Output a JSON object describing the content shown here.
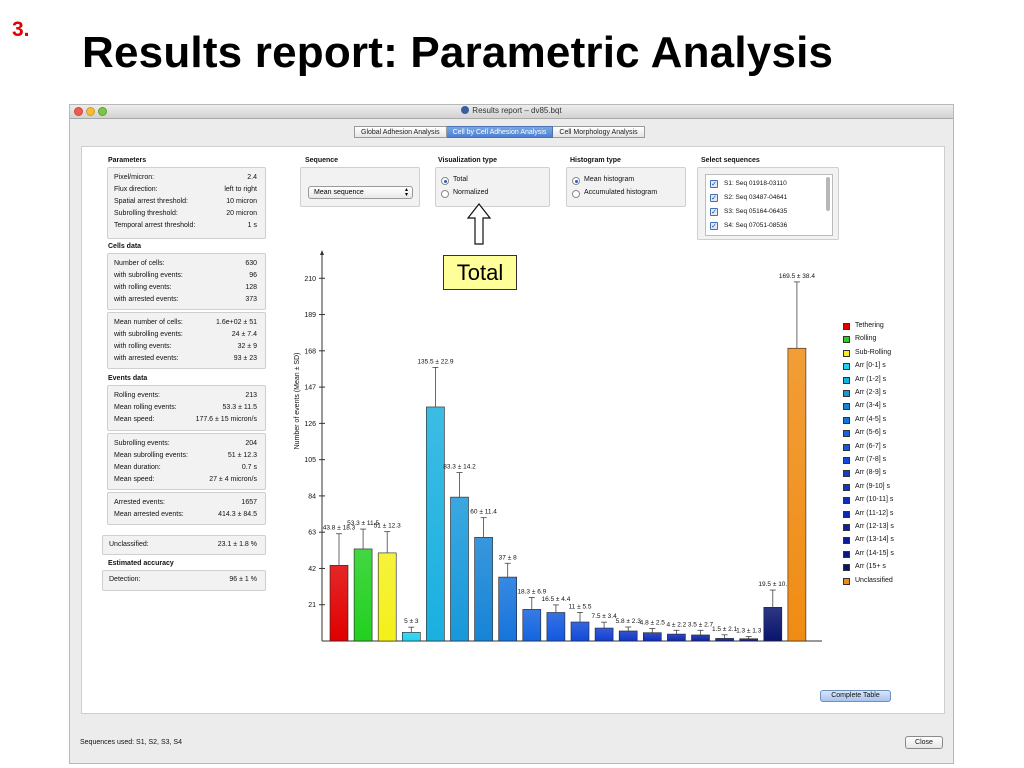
{
  "slide": {
    "number": "3.",
    "title": "Results report: Parametric Analysis"
  },
  "window": {
    "title": "Results report – dv85.bqt"
  },
  "tabs": [
    {
      "label": "Global Adhesion Analysis",
      "active": false
    },
    {
      "label": "Cell by Cell Adhesion Analysis",
      "active": true
    },
    {
      "label": "Cell Morphology Analysis",
      "active": false
    }
  ],
  "parameters": {
    "heading": "Parameters",
    "rows": [
      {
        "label": "Pixel/micron:",
        "value": "2.4"
      },
      {
        "label": "Flux direction:",
        "value": "left to right"
      },
      {
        "label": "Spatial arrest threshold:",
        "value": "10 micron"
      },
      {
        "label": "Subrolling threshold:",
        "value": "20 micron"
      },
      {
        "label": "Temporal arrest threshold:",
        "value": "1 s"
      }
    ]
  },
  "cells_data": {
    "heading": "Cells data",
    "group1": [
      {
        "label": "Number of cells:",
        "value": "630"
      },
      {
        "label": "with subrolling events:",
        "value": "96"
      },
      {
        "label": "with rolling events:",
        "value": "128"
      },
      {
        "label": "with arrested events:",
        "value": "373"
      }
    ],
    "group2": [
      {
        "label": "Mean number of cells:",
        "value": "1.6e+02 ± 51"
      },
      {
        "label": "with subrolling events:",
        "value": "24 ± 7.4"
      },
      {
        "label": "with rolling events:",
        "value": "32 ± 9"
      },
      {
        "label": "with arrested events:",
        "value": "93 ± 23"
      }
    ]
  },
  "events_data": {
    "heading": "Events data",
    "group1": [
      {
        "label": "Rolling events:",
        "value": "213"
      },
      {
        "label": "Mean rolling events:",
        "value": "53.3 ± 11.5"
      },
      {
        "label": "Mean speed:",
        "value": "177.6 ± 15 micron/s"
      }
    ],
    "group2": [
      {
        "label": "Subrolling events:",
        "value": "204"
      },
      {
        "label": "Mean subrolling events:",
        "value": "51 ± 12.3"
      },
      {
        "label": "Mean duration:",
        "value": "0.7 s"
      },
      {
        "label": "Mean speed:",
        "value": "27 ± 4 micron/s"
      }
    ],
    "group3": [
      {
        "label": "Arrested events:",
        "value": "1657"
      },
      {
        "label": "Mean arrested events:",
        "value": "414.3 ± 84.5"
      }
    ]
  },
  "unclassified": {
    "label": "Unclassified:",
    "value": "23.1 ± 1.8 %"
  },
  "accuracy": {
    "heading": "Estimated accuracy",
    "label": "Detection:",
    "value": "96 ± 1 %"
  },
  "sequence": {
    "heading": "Sequence",
    "selected": "Mean sequence"
  },
  "visualization": {
    "heading": "Visualization type",
    "options": [
      {
        "label": "Total",
        "checked": true
      },
      {
        "label": "Normalized",
        "checked": false
      }
    ]
  },
  "histogram": {
    "heading": "Histogram type",
    "options": [
      {
        "label": "Mean histogram",
        "checked": true
      },
      {
        "label": "Accumulated histogram",
        "checked": false
      }
    ]
  },
  "select_sequences": {
    "heading": "Select sequences",
    "items": [
      {
        "label": "S1: Seq 01918-03110",
        "checked": true
      },
      {
        "label": "S2: Seq 03487-04641",
        "checked": true
      },
      {
        "label": "S3: Seq 05164-06435",
        "checked": true
      },
      {
        "label": "S4: Seq 07051-08536",
        "checked": true
      }
    ]
  },
  "callout": {
    "label": "Total"
  },
  "buttons": {
    "complete_table": "Complete Table",
    "close": "Close"
  },
  "status": {
    "text": "Sequences used: S1, S2, S3, S4"
  },
  "chart_data": {
    "type": "bar",
    "ylabel": "Number of events (Mean ± SD)",
    "ylim": [
      0,
      220
    ],
    "yticks": [
      21,
      42,
      63,
      84,
      105,
      126,
      147,
      168,
      189,
      210
    ],
    "legend_position": "right",
    "bars": [
      {
        "category": "Tethering",
        "value": 43.8,
        "err": 18.3,
        "label": "43.8 ± 18.3",
        "color": "#e00000"
      },
      {
        "category": "Rolling",
        "value": 53.3,
        "err": 11.5,
        "label": "53.3 ± 11.5",
        "color": "#22d020"
      },
      {
        "category": "Sub-Rolling",
        "value": 51,
        "err": 12.3,
        "label": "51 ± 12.3",
        "color": "#f4f01a"
      },
      {
        "category": "Arr [0-1] s",
        "value": 5,
        "err": 3,
        "label": "5 ± 3",
        "color": "#22d0ee"
      },
      {
        "category": "Arr (1-2] s",
        "value": 135.5,
        "err": 22.9,
        "label": "135.5 ± 22.9",
        "color": "#1ab0e0"
      },
      {
        "category": "Arr (2-3] s",
        "value": 83.3,
        "err": 14.2,
        "label": "83.3 ± 14.2",
        "color": "#1898da"
      },
      {
        "category": "Arr (3-4] s",
        "value": 60,
        "err": 11.4,
        "label": "60 ± 11.4",
        "color": "#1684d6"
      },
      {
        "category": "Arr (4-5] s",
        "value": 37,
        "err": 8,
        "label": "37 ± 8",
        "color": "#1574dc"
      },
      {
        "category": "Arr (5-6] s",
        "value": 18.3,
        "err": 6.9,
        "label": "18.3 ± 6.9",
        "color": "#1464e0"
      },
      {
        "category": "Arr (6-7] s",
        "value": 16.5,
        "err": 4.4,
        "label": "16.5 ± 4.4",
        "color": "#1358e0"
      },
      {
        "category": "Arr (7-8] s",
        "value": 11,
        "err": 5.5,
        "label": "11 ± 5.5",
        "color": "#124ad8"
      },
      {
        "category": "Arr (8-9] s",
        "value": 7.5,
        "err": 3.4,
        "label": "7.5 ± 3.4",
        "color": "#1140d0"
      },
      {
        "category": "Arr (9-10] s",
        "value": 5.8,
        "err": 2.3,
        "label": "5.8 ± 2.3",
        "color": "#1036c6"
      },
      {
        "category": "Arr (10-11] s",
        "value": 4.8,
        "err": 2.5,
        "label": "4.8 ± 2.5",
        "color": "#0f2ebc"
      },
      {
        "category": "Arr (11-12] s",
        "value": 4,
        "err": 2.2,
        "label": "4 ± 2.2",
        "color": "#0e28b0"
      },
      {
        "category": "Arr (12-13] s",
        "value": 3.5,
        "err": 2.7,
        "label": "3.5 ± 2.7",
        "color": "#0c22a2"
      },
      {
        "category": "Arr (13-14] s",
        "value": 1.5,
        "err": 2.1,
        "label": "1.5 ± 2.1",
        "color": "#0b1c94"
      },
      {
        "category": "Arr (14-15] s",
        "value": 1.3,
        "err": 1.3,
        "label": "1.3 ± 1.3",
        "color": "#0a1886"
      },
      {
        "category": "Arr (15+ s",
        "value": 19.5,
        "err": 10,
        "label": "19.5 ± 10.",
        "color": "#08146e"
      },
      {
        "category": "Unclassified",
        "value": 169.5,
        "err": 38.4,
        "label": "169.5 ± 38.4",
        "color": "#f08c14"
      }
    ]
  }
}
